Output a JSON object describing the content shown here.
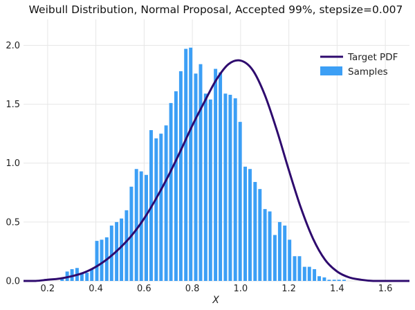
{
  "chart_data": {
    "type": "bar",
    "title": "Weibull Distribution, Normal Proposal, Accepted 99%, stepsize=0.007",
    "xlabel": "X",
    "ylabel": "",
    "xlim": [
      0.1,
      1.7
    ],
    "ylim": [
      0,
      2.22
    ],
    "grid": true,
    "legend_position": "top-right",
    "x_ticks": [
      "0.2",
      "0.4",
      "0.6",
      "0.8",
      "1.0",
      "1.2",
      "1.4",
      "1.6"
    ],
    "y_ticks": [
      "0.0",
      "0.5",
      "1.0",
      "1.5",
      "2.0"
    ],
    "colors": {
      "bars": "#3c9ff5",
      "pdf": "#2e0a6e"
    },
    "series": [
      {
        "name": "Samples",
        "type": "bar",
        "bin_width": 0.0205,
        "x": [
          0.26,
          0.281,
          0.301,
          0.322,
          0.342,
          0.363,
          0.383,
          0.404,
          0.424,
          0.445,
          0.465,
          0.486,
          0.506,
          0.527,
          0.547,
          0.568,
          0.588,
          0.609,
          0.629,
          0.65,
          0.67,
          0.691,
          0.711,
          0.732,
          0.752,
          0.773,
          0.793,
          0.814,
          0.834,
          0.855,
          0.875,
          0.896,
          0.916,
          0.937,
          0.957,
          0.978,
          0.998,
          1.019,
          1.039,
          1.06,
          1.08,
          1.101,
          1.121,
          1.142,
          1.162,
          1.183,
          1.203,
          1.224,
          1.244,
          1.265,
          1.285,
          1.306,
          1.326,
          1.347,
          1.367,
          1.388,
          1.408,
          1.429
        ],
        "values": [
          0.02,
          0.08,
          0.1,
          0.11,
          0.06,
          0.07,
          0.1,
          0.34,
          0.35,
          0.37,
          0.47,
          0.5,
          0.53,
          0.6,
          0.8,
          0.95,
          0.93,
          0.9,
          1.28,
          1.21,
          1.25,
          1.32,
          1.51,
          1.61,
          1.78,
          1.97,
          1.98,
          1.76,
          1.84,
          1.59,
          1.54,
          1.8,
          1.77,
          1.59,
          1.58,
          1.55,
          1.35,
          0.97,
          0.95,
          0.84,
          0.78,
          0.61,
          0.59,
          0.39,
          0.5,
          0.47,
          0.35,
          0.21,
          0.21,
          0.12,
          0.12,
          0.1,
          0.04,
          0.03,
          0.01,
          0.01,
          0.01,
          0.01
        ]
      },
      {
        "name": "Target PDF",
        "type": "line",
        "x": [
          0.1,
          0.15,
          0.2,
          0.25,
          0.3,
          0.35,
          0.4,
          0.45,
          0.5,
          0.55,
          0.6,
          0.65,
          0.7,
          0.75,
          0.8,
          0.85,
          0.9,
          0.95,
          1.0,
          1.05,
          1.1,
          1.15,
          1.2,
          1.25,
          1.3,
          1.35,
          1.4,
          1.45,
          1.5,
          1.55,
          1.6,
          1.65,
          1.7
        ],
        "values": [
          0.0,
          0.0,
          0.01,
          0.02,
          0.04,
          0.07,
          0.12,
          0.19,
          0.28,
          0.39,
          0.53,
          0.7,
          0.89,
          1.1,
          1.32,
          1.52,
          1.71,
          1.84,
          1.87,
          1.79,
          1.58,
          1.28,
          0.94,
          0.62,
          0.36,
          0.18,
          0.08,
          0.03,
          0.01,
          0.0,
          0.0,
          0.0,
          0.0
        ]
      }
    ]
  }
}
